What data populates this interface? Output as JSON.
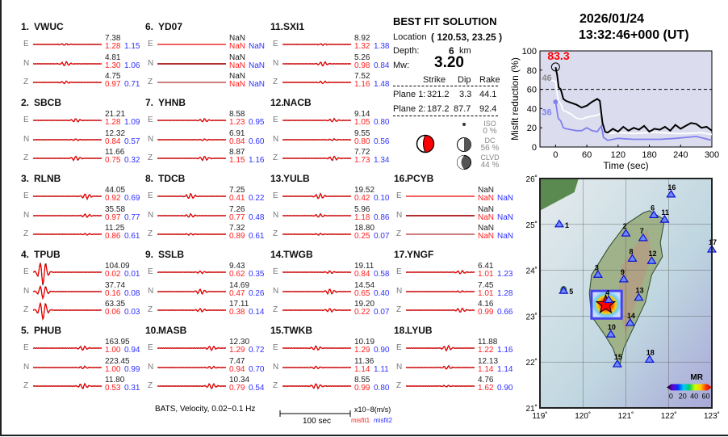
{
  "stations": [
    {
      "num": "1.",
      "name": "VWUC",
      "col": 0,
      "row": 0,
      "comps": [
        {
          "c": "E",
          "amp": "7.38",
          "m1": "1.28",
          "m2": "1.15"
        },
        {
          "c": "N",
          "amp": "4.81",
          "m1": "1.30",
          "m2": "1.06"
        },
        {
          "c": "Z",
          "amp": "4.75",
          "m1": "0.97",
          "m2": "0.71"
        }
      ]
    },
    {
      "num": "2.",
      "name": "SBCB",
      "col": 0,
      "row": 1,
      "comps": [
        {
          "c": "E",
          "amp": "21.21",
          "m1": "1.28",
          "m2": "1.09"
        },
        {
          "c": "N",
          "amp": "12.32",
          "m1": "0.84",
          "m2": "0.57"
        },
        {
          "c": "Z",
          "amp": "11.66",
          "m1": "0.75",
          "m2": "0.32"
        }
      ]
    },
    {
      "num": "3.",
      "name": "RLNB",
      "col": 0,
      "row": 2,
      "comps": [
        {
          "c": "E",
          "amp": "44.05",
          "m1": "0.92",
          "m2": "0.69"
        },
        {
          "c": "N",
          "amp": "35.58",
          "m1": "0.97",
          "m2": "0.77"
        },
        {
          "c": "Z",
          "amp": "11.25",
          "m1": "0.86",
          "m2": "0.61"
        }
      ]
    },
    {
      "num": "4.",
      "name": "TPUB",
      "col": 0,
      "row": 3,
      "comps": [
        {
          "c": "E",
          "amp": "104.09",
          "m1": "0.02",
          "m2": "0.01"
        },
        {
          "c": "N",
          "amp": "37.74",
          "m1": "0.16",
          "m2": "0.08"
        },
        {
          "c": "Z",
          "amp": "63.35",
          "m1": "0.06",
          "m2": "0.03"
        }
      ]
    },
    {
      "num": "5.",
      "name": "PHUB",
      "col": 0,
      "row": 4,
      "comps": [
        {
          "c": "E",
          "amp": "163.95",
          "m1": "1.00",
          "m2": "0.94"
        },
        {
          "c": "N",
          "amp": "223.45",
          "m1": "1.00",
          "m2": "0.99"
        },
        {
          "c": "Z",
          "amp": "11.80",
          "m1": "0.53",
          "m2": "0.31"
        }
      ]
    },
    {
      "num": "6.",
      "name": "YD07",
      "col": 1,
      "row": 0,
      "comps": [
        {
          "c": "E",
          "amp": "NaN",
          "m1": "NaN",
          "m2": "NaN"
        },
        {
          "c": "N",
          "amp": "NaN",
          "m1": "NaN",
          "m2": "NaN"
        },
        {
          "c": "Z",
          "amp": "NaN",
          "m1": "NaN",
          "m2": "NaN"
        }
      ]
    },
    {
      "num": "7.",
      "name": "YHNB",
      "col": 1,
      "row": 1,
      "comps": [
        {
          "c": "E",
          "amp": "8.58",
          "m1": "1.23",
          "m2": "0.95"
        },
        {
          "c": "N",
          "amp": "6.91",
          "m1": "0.84",
          "m2": "0.60"
        },
        {
          "c": "Z",
          "amp": "8.87",
          "m1": "1.15",
          "m2": "1.16"
        }
      ]
    },
    {
      "num": "8.",
      "name": "TDCB",
      "col": 1,
      "row": 2,
      "comps": [
        {
          "c": "E",
          "amp": "7.25",
          "m1": "0.41",
          "m2": "0.22"
        },
        {
          "c": "N",
          "amp": "7.26",
          "m1": "0.77",
          "m2": "0.48"
        },
        {
          "c": "Z",
          "amp": "7.32",
          "m1": "0.89",
          "m2": "0.61"
        }
      ]
    },
    {
      "num": "9.",
      "name": "SSLB",
      "col": 1,
      "row": 3,
      "comps": [
        {
          "c": "E",
          "amp": "9.43",
          "m1": "0.62",
          "m2": "0.35"
        },
        {
          "c": "N",
          "amp": "14.69",
          "m1": "0.47",
          "m2": "0.26"
        },
        {
          "c": "Z",
          "amp": "17.11",
          "m1": "0.38",
          "m2": "0.14"
        }
      ]
    },
    {
      "num": "10.",
      "name": "MASB",
      "col": 1,
      "row": 4,
      "comps": [
        {
          "c": "E",
          "amp": "12.30",
          "m1": "1.29",
          "m2": "0.72"
        },
        {
          "c": "N",
          "amp": "7.47",
          "m1": "0.94",
          "m2": "0.70"
        },
        {
          "c": "Z",
          "amp": "10.34",
          "m1": "0.79",
          "m2": "0.54"
        }
      ]
    },
    {
      "num": "11.",
      "name": "SXI1",
      "col": 2,
      "row": 0,
      "comps": [
        {
          "c": "E",
          "amp": "8.92",
          "m1": "1.32",
          "m2": "1.38"
        },
        {
          "c": "N",
          "amp": "5.26",
          "m1": "0.98",
          "m2": "0.84"
        },
        {
          "c": "Z",
          "amp": "7.52",
          "m1": "1.16",
          "m2": "1.48"
        }
      ]
    },
    {
      "num": "12.",
      "name": "NACB",
      "col": 2,
      "row": 1,
      "comps": [
        {
          "c": "E",
          "amp": "9.14",
          "m1": "1.05",
          "m2": "0.80"
        },
        {
          "c": "N",
          "amp": "9.55",
          "m1": "0.80",
          "m2": "0.56"
        },
        {
          "c": "Z",
          "amp": "7.72",
          "m1": "1.73",
          "m2": "1.34"
        }
      ]
    },
    {
      "num": "13.",
      "name": "YULB",
      "col": 2,
      "row": 2,
      "comps": [
        {
          "c": "E",
          "amp": "19.52",
          "m1": "0.42",
          "m2": "0.10"
        },
        {
          "c": "N",
          "amp": "5.96",
          "m1": "1.18",
          "m2": "0.86"
        },
        {
          "c": "Z",
          "amp": "18.80",
          "m1": "0.25",
          "m2": "0.07"
        }
      ]
    },
    {
      "num": "14.",
      "name": "TWGB",
      "col": 2,
      "row": 3,
      "comps": [
        {
          "c": "E",
          "amp": "19.11",
          "m1": "0.84",
          "m2": "0.58"
        },
        {
          "c": "N",
          "amp": "14.54",
          "m1": "0.65",
          "m2": "0.40"
        },
        {
          "c": "Z",
          "amp": "19.20",
          "m1": "0.22",
          "m2": "0.07"
        }
      ]
    },
    {
      "num": "15.",
      "name": "TWKB",
      "col": 2,
      "row": 4,
      "comps": [
        {
          "c": "E",
          "amp": "10.19",
          "m1": "1.29",
          "m2": "0.90"
        },
        {
          "c": "N",
          "amp": "11.36",
          "m1": "1.14",
          "m2": "1.11"
        },
        {
          "c": "Z",
          "amp": "8.55",
          "m1": "0.99",
          "m2": "0.80"
        }
      ]
    },
    {
      "num": "16.",
      "name": "PCYB",
      "col": 3,
      "row": 2,
      "comps": [
        {
          "c": "E",
          "amp": "NaN",
          "m1": "NaN",
          "m2": "NaN"
        },
        {
          "c": "N",
          "amp": "NaN",
          "m1": "NaN",
          "m2": "NaN"
        },
        {
          "c": "Z",
          "amp": "NaN",
          "m1": "NaN",
          "m2": "NaN"
        }
      ]
    },
    {
      "num": "17.",
      "name": "YNGF",
      "col": 3,
      "row": 3,
      "comps": [
        {
          "c": "E",
          "amp": "6.41",
          "m1": "1.01",
          "m2": "1.23"
        },
        {
          "c": "N",
          "amp": "7.45",
          "m1": "1.01",
          "m2": "1.28"
        },
        {
          "c": "Z",
          "amp": "4.16",
          "m1": "0.99",
          "m2": "0.66"
        }
      ]
    },
    {
      "num": "18.",
      "name": "LYUB",
      "col": 3,
      "row": 4,
      "comps": [
        {
          "c": "E",
          "amp": "11.88",
          "m1": "1.22",
          "m2": "1.16"
        },
        {
          "c": "N",
          "amp": "12.13",
          "m1": "1.14",
          "m2": "1.14"
        },
        {
          "c": "Z",
          "amp": "4.76",
          "m1": "1.62",
          "m2": "0.90"
        }
      ]
    }
  ],
  "footer": {
    "caption": "BATS, Velocity, 0.02−0.1 Hz",
    "scale_label": "100 sec",
    "units": "x10−8(m/s)",
    "misfit1": "misfit1",
    "misfit2": "misfit2"
  },
  "solution": {
    "title": "BEST FIT SOLUTION",
    "location_label": "Location",
    "location_value": "( 120.53,  23.25 )",
    "depth_label": "Depth:",
    "depth_value": "6",
    "depth_unit": "km",
    "mw_label": "Mw:",
    "mw_value": "3.20",
    "headers": [
      "Strike",
      "Dip",
      "Rake"
    ],
    "planes": [
      {
        "label": "Plane 1:",
        "strike": "321.2",
        "dip": "3.3",
        "rake": "44.1"
      },
      {
        "label": "Plane 2:",
        "strike": "187.2",
        "dip": "87.7",
        "rake": "92.4"
      }
    ],
    "iso_label": "ISO",
    "iso_value": "0  %",
    "dc_label": "DC",
    "dc_value": "56 %",
    "clvd_label": "CLVD",
    "clvd_value": "44 %",
    "beachball_color": "#ff0000"
  },
  "event": {
    "date": "2026/01/24",
    "time": "13:32:46+000  (UT)"
  },
  "chart_data": {
    "type": "line",
    "xlabel": "Time (sec)",
    "ylabel": "Misfit reduction (%)",
    "xlim": [
      -30,
      300
    ],
    "ylim": [
      0,
      100
    ],
    "xticks": [
      0,
      60,
      120,
      180,
      240,
      300
    ],
    "yticks": [
      0,
      20,
      40,
      60,
      80,
      100
    ],
    "reference_line": 60,
    "background": "#dcdcef",
    "best_label": "83.3",
    "best_x": 0,
    "best_y": 83.3,
    "white_label": "46",
    "blue_label": "36",
    "series": [
      {
        "color": "#000000",
        "x": [
          0,
          3,
          6,
          10,
          15,
          20,
          30,
          40,
          50,
          60,
          70,
          80,
          85,
          90,
          95,
          100,
          110,
          120,
          130,
          140,
          150,
          160,
          170,
          180,
          190,
          200,
          210,
          220,
          230,
          240,
          250,
          260,
          270,
          280,
          290,
          300
        ],
        "y": [
          83,
          75,
          62,
          60,
          50,
          48,
          46,
          44,
          41,
          43,
          47,
          50,
          48,
          25,
          16,
          15,
          19,
          16,
          21,
          17,
          20,
          18,
          22,
          16,
          19,
          18,
          21,
          17,
          23,
          19,
          22,
          25,
          24,
          20,
          21,
          17
        ]
      },
      {
        "color": "#ffffff",
        "x": [
          -10,
          0,
          5,
          10,
          15,
          20,
          30,
          40,
          50,
          60,
          70,
          80,
          88,
          92,
          100,
          120,
          150,
          180,
          200,
          230,
          250,
          280,
          300
        ],
        "y": [
          70,
          68,
          48,
          45,
          38,
          37,
          34,
          30,
          29,
          31,
          32,
          33,
          35,
          18,
          14,
          15,
          14,
          15,
          15,
          14,
          14,
          15,
          13
        ]
      },
      {
        "color": "#8080ee",
        "x": [
          0,
          5,
          10,
          15,
          20,
          30,
          40,
          50,
          60,
          70,
          80,
          88,
          92,
          100,
          120,
          150,
          180,
          200,
          230,
          250,
          270,
          300
        ],
        "y": [
          47,
          30,
          27,
          20,
          19,
          18,
          17,
          17,
          20,
          17,
          16,
          22,
          10,
          7,
          9,
          8,
          8,
          8,
          9,
          10,
          11,
          7
        ]
      }
    ]
  },
  "map": {
    "lon_range": [
      119,
      123
    ],
    "lat_range": [
      21,
      26
    ],
    "lon_ticks": [
      "119˚",
      "120˚",
      "121˚",
      "122˚",
      "123˚"
    ],
    "lat_ticks": [
      "21˚",
      "22˚",
      "23˚",
      "24˚",
      "25˚",
      "26˚"
    ],
    "epicenter": {
      "lon": 120.53,
      "lat": 23.25
    },
    "colorbar_title": "MR",
    "colorbar_ticks": [
      "0",
      "20",
      "40",
      "60"
    ],
    "stations": [
      {
        "n": "1",
        "lon": 119.45,
        "lat": 25.0
      },
      {
        "n": "2",
        "lon": 121.0,
        "lat": 24.8
      },
      {
        "n": "3",
        "lon": 120.35,
        "lat": 23.9
      },
      {
        "n": "4",
        "lon": 120.6,
        "lat": 23.35
      },
      {
        "n": "5",
        "lon": 119.55,
        "lat": 23.55
      },
      {
        "n": "6",
        "lon": 121.65,
        "lat": 25.2
      },
      {
        "n": "7",
        "lon": 121.4,
        "lat": 24.7
      },
      {
        "n": "8",
        "lon": 121.15,
        "lat": 24.25
      },
      {
        "n": "9",
        "lon": 120.95,
        "lat": 23.8
      },
      {
        "n": "10",
        "lon": 120.65,
        "lat": 22.6
      },
      {
        "n": "11",
        "lon": 121.9,
        "lat": 25.1
      },
      {
        "n": "12",
        "lon": 121.6,
        "lat": 24.2
      },
      {
        "n": "13",
        "lon": 121.3,
        "lat": 23.4
      },
      {
        "n": "14",
        "lon": 121.1,
        "lat": 22.85
      },
      {
        "n": "15",
        "lon": 120.8,
        "lat": 21.95
      },
      {
        "n": "16",
        "lon": 122.05,
        "lat": 25.65
      },
      {
        "n": "17",
        "lon": 123.0,
        "lat": 24.45
      },
      {
        "n": "18",
        "lon": 121.55,
        "lat": 22.05
      }
    ]
  }
}
